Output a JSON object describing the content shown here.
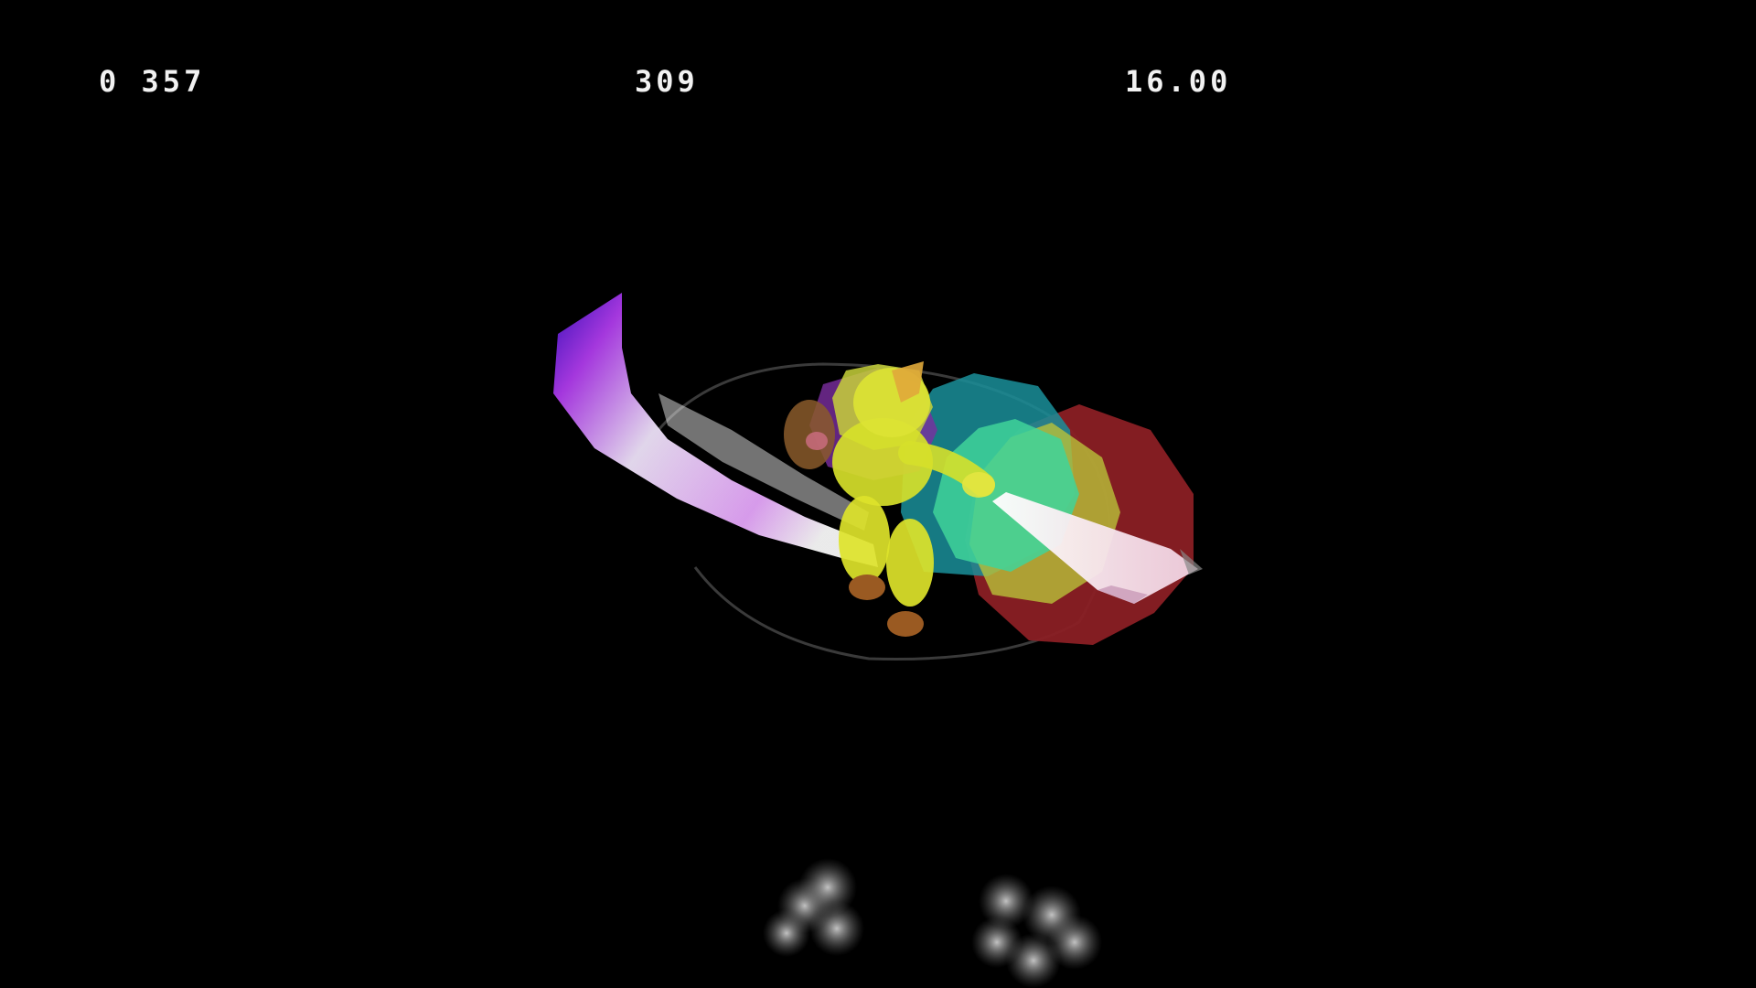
{
  "hud": {
    "left_counter": "0 357",
    "center_counter": "309",
    "right_counter": "16.00"
  },
  "scene": {
    "character": "yellow-fighter",
    "effects": [
      "purple-white-slash-trail",
      "hitbox-bubbles",
      "dust-clouds"
    ],
    "hitbox_colors": [
      "#8a1f24",
      "#1a8f9a",
      "#b9c23a",
      "#3fd39a",
      "#7c2ea0"
    ],
    "background_color": "#000000"
  }
}
